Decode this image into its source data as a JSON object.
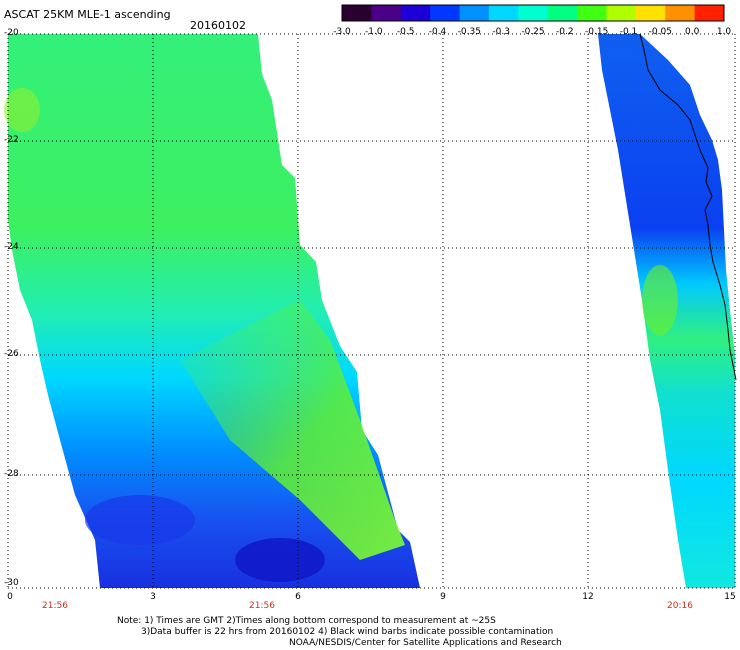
{
  "header": {
    "title": "ASCAT 25KM MLE-1 ascending",
    "date": "20160102"
  },
  "colorbar": {
    "tick_labels": [
      "-3.0",
      "-1.0",
      "-0.5",
      "-0.4",
      "-0.35",
      "-0.3",
      "-0.25",
      "-0.2",
      "-0.15",
      "-0.1",
      "-0.05",
      "0.0",
      "1.0"
    ],
    "colors": [
      "#2a0030",
      "#4b0088",
      "#1c00d8",
      "#0038ff",
      "#0090ff",
      "#00d8ff",
      "#00ffd0",
      "#00ff80",
      "#40ff10",
      "#b0ff00",
      "#ffe000",
      "#ff9000",
      "#ff2000"
    ]
  },
  "axes": {
    "lat_labels": [
      "-20",
      "-22",
      "-24",
      "-26",
      "-28",
      "-30"
    ],
    "lon_labels": [
      "0",
      "3",
      "6",
      "9",
      "12",
      "15"
    ],
    "time_labels": [
      "21:56",
      "21:56",
      "20:16"
    ]
  },
  "notes": {
    "line1": "Note: 1) Times are GMT 2)Times along bottom correspond to measurement at ~25S",
    "line2": "3)Data buffer is 22 hrs from 20160102 4) Black wind barbs indicate possible contamination",
    "line3": "NOAA/NESDIS/Center for Satellite Applications and Research"
  }
}
